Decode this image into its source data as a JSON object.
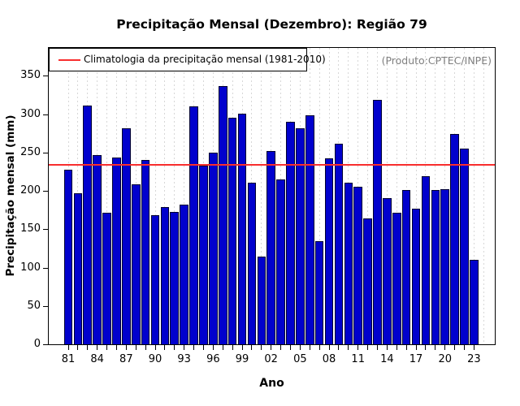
{
  "title": "Precipitação Mensal (Dezembro): Região 79",
  "produto_note": "(Produto:CPTEC/INPE)",
  "legend": {
    "label": "Climatologia da precipitação mensal (1981-2010)",
    "line_color": "#f82e2e"
  },
  "chart_data": {
    "type": "bar",
    "title": "Precipitação Mensal (Dezembro): Região 79",
    "xlabel": "Ano",
    "ylabel": "Precipitação mensal (mm)",
    "ylim": [
      0,
      388
    ],
    "y_ticks": [
      0,
      50,
      100,
      150,
      200,
      250,
      300,
      350
    ],
    "years": [
      1981,
      1982,
      1983,
      1984,
      1985,
      1986,
      1987,
      1988,
      1989,
      1990,
      1991,
      1992,
      1993,
      1994,
      1995,
      1996,
      1997,
      1998,
      1999,
      2000,
      2001,
      2002,
      2003,
      2004,
      2005,
      2006,
      2007,
      2008,
      2009,
      2010,
      2011,
      2012,
      2013,
      2014,
      2015,
      2016,
      2017,
      2018,
      2019,
      2020,
      2021,
      2022,
      2023
    ],
    "x_tick_labels": [
      "81",
      "84",
      "87",
      "90",
      "93",
      "96",
      "99",
      "02",
      "05",
      "08",
      "11",
      "14",
      "17",
      "20",
      "23"
    ],
    "x_label_every_n_years": 3,
    "values": [
      228,
      197,
      311,
      247,
      171,
      243,
      282,
      209,
      240,
      168,
      179,
      172,
      182,
      310,
      233,
      250,
      337,
      295,
      301,
      211,
      114,
      252,
      215,
      290,
      281,
      298,
      134,
      242,
      261,
      211,
      205,
      164,
      319,
      191,
      171,
      201,
      177,
      219,
      201,
      202,
      274,
      255,
      110
    ],
    "climatology": {
      "label": "Climatologia da precipitação mensal (1981-2010)",
      "value": 234,
      "color": "#f82e2e"
    },
    "annotation": "(Produto:CPTEC/INPE)",
    "bar_color": "#0101cd",
    "bar_border_color": "#000030",
    "grid": {
      "vertical_dotted": true,
      "color": "#d7d7d7"
    },
    "legend_position": "top-left"
  }
}
